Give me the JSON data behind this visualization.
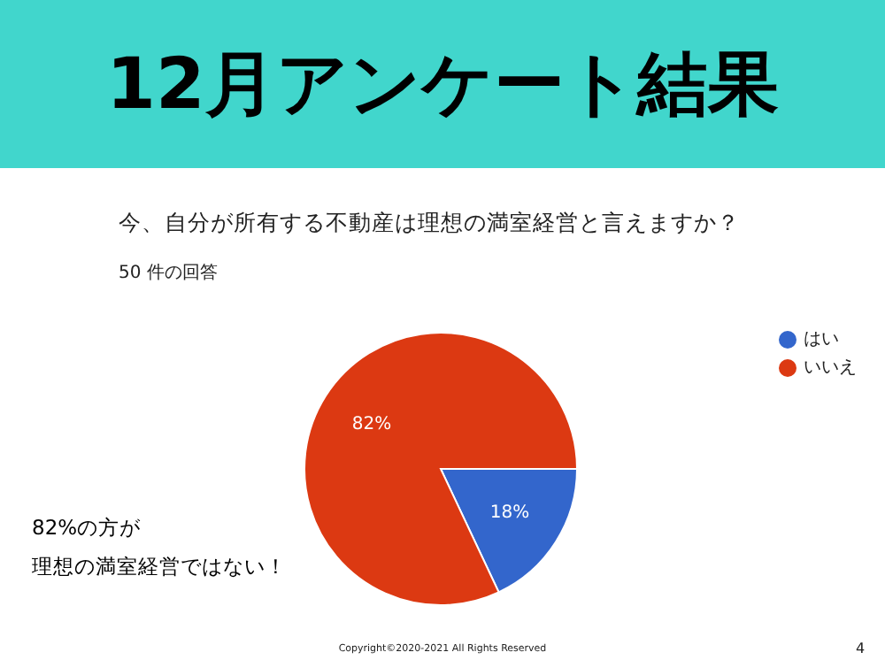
{
  "chart_data": {
    "type": "pie",
    "title": "12月アンケート結果",
    "subtitle": "今、自分が所有する不動産は理想の満室経営と言えますか？\n50 件の回答",
    "categories": [
      "はい",
      "いいえ"
    ],
    "values": [
      18,
      82
    ],
    "colors": [
      "#3366cc",
      "#dc3912"
    ],
    "value_labels": [
      "18%",
      "82%"
    ],
    "legend": "top right",
    "annotations": [
      "82%の方が",
      "理想の満室経営ではない！",
      "Copyright©2020-2021 All Rights Reserved",
      "4"
    ]
  }
}
